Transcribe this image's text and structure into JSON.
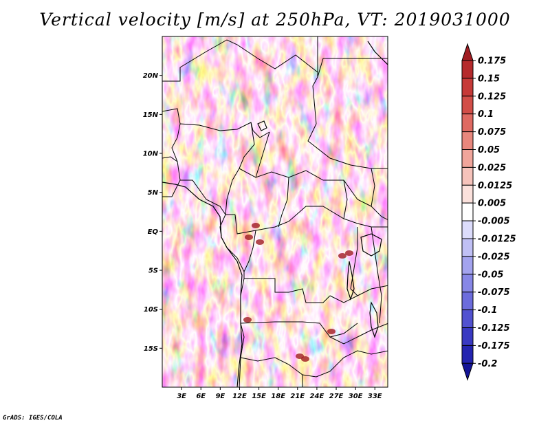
{
  "title": "Vertical velocity [m/s] at 250hPa, VT: 2019031000",
  "credit": "GrADS: IGES/COLA",
  "map": {
    "variable": "Vertical velocity",
    "units": "m/s",
    "level": "250hPa",
    "valid_time": "2019031000",
    "lat_range": [
      -20,
      25
    ],
    "lon_range": [
      0,
      35
    ],
    "lat_ticks": [
      {
        "value": 20,
        "label": "20N"
      },
      {
        "value": 15,
        "label": "15N"
      },
      {
        "value": 10,
        "label": "10N"
      },
      {
        "value": 5,
        "label": "5N"
      },
      {
        "value": 0,
        "label": "EQ"
      },
      {
        "value": -5,
        "label": "5S"
      },
      {
        "value": -10,
        "label": "10S"
      },
      {
        "value": -15,
        "label": "15S"
      }
    ],
    "lon_ticks": [
      {
        "value": 3,
        "label": "3E"
      },
      {
        "value": 6,
        "label": "6E"
      },
      {
        "value": 9,
        "label": "9E"
      },
      {
        "value": 12,
        "label": "12E"
      },
      {
        "value": 15,
        "label": "15E"
      },
      {
        "value": 18,
        "label": "18E"
      },
      {
        "value": 21,
        "label": "21E"
      },
      {
        "value": 24,
        "label": "24E"
      },
      {
        "value": 27,
        "label": "27E"
      },
      {
        "value": 30,
        "label": "30E"
      },
      {
        "value": 33,
        "label": "33E"
      }
    ]
  },
  "colorbar": {
    "labels": [
      "0.175",
      "0.15",
      "0.125",
      "0.1",
      "0.075",
      "0.05",
      "0.025",
      "0.0125",
      "0.005",
      "-0.005",
      "-0.0125",
      "-0.025",
      "-0.05",
      "-0.075",
      "-0.1",
      "-0.125",
      "-0.175",
      "-0.2"
    ],
    "colors": [
      "#a01c22",
      "#b52a2c",
      "#c63a38",
      "#d24e48",
      "#df6a62",
      "#e8877d",
      "#f0a59b",
      "#f6c3bb",
      "#fbe1dc",
      "#ffffff",
      "#dcdcfb",
      "#c0c0f5",
      "#a3a3ee",
      "#8787e6",
      "#6c6cdc",
      "#5252d0",
      "#3939c2",
      "#2424b0",
      "#141496"
    ]
  }
}
